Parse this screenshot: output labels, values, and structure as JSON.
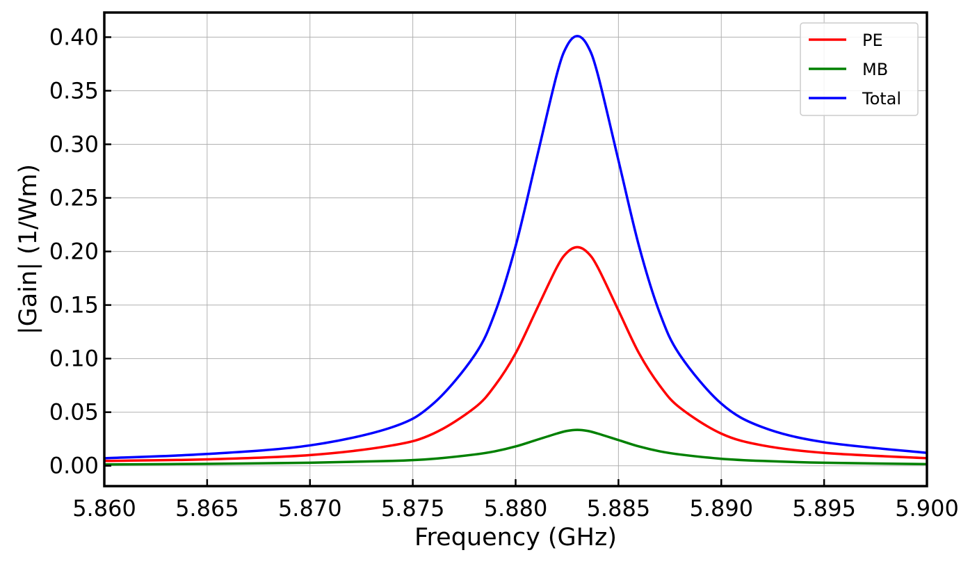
{
  "chart_data": {
    "type": "line",
    "title": "",
    "xlabel": "Frequency (GHz)",
    "ylabel": "|Gain| (1/Wm)",
    "xlim": [
      5.86,
      5.9
    ],
    "ylim": [
      -0.019,
      0.423
    ],
    "x_ticks": [
      "5.860",
      "5.865",
      "5.870",
      "5.875",
      "5.880",
      "5.885",
      "5.890",
      "5.895",
      "5.900"
    ],
    "y_ticks": [
      "0.00",
      "0.05",
      "0.10",
      "0.15",
      "0.20",
      "0.25",
      "0.30",
      "0.35",
      "0.40"
    ],
    "grid": true,
    "legend_position": "top-right",
    "series": [
      {
        "name": "PE",
        "color": "#ff0000",
        "x": [
          5.86,
          5.865,
          5.87,
          5.874,
          5.876,
          5.878,
          5.879,
          5.88,
          5.881,
          5.882,
          5.8825,
          5.883,
          5.8835,
          5.884,
          5.885,
          5.886,
          5.887,
          5.888,
          5.89,
          5.892,
          5.895,
          5.9
        ],
        "y": [
          0.0045,
          0.006,
          0.01,
          0.019,
          0.03,
          0.054,
          0.075,
          0.105,
          0.145,
          0.185,
          0.199,
          0.204,
          0.199,
          0.185,
          0.145,
          0.105,
          0.075,
          0.054,
          0.03,
          0.019,
          0.012,
          0.007
        ]
      },
      {
        "name": "MB",
        "color": "#008000",
        "x": [
          5.86,
          5.865,
          5.87,
          5.874,
          5.876,
          5.878,
          5.879,
          5.88,
          5.881,
          5.882,
          5.8825,
          5.883,
          5.8835,
          5.884,
          5.885,
          5.886,
          5.887,
          5.888,
          5.89,
          5.892,
          5.895,
          5.9
        ],
        "y": [
          0.0012,
          0.0018,
          0.0028,
          0.0045,
          0.0065,
          0.0105,
          0.0135,
          0.018,
          0.024,
          0.03,
          0.0325,
          0.0335,
          0.0325,
          0.03,
          0.024,
          0.018,
          0.0135,
          0.0105,
          0.0065,
          0.0045,
          0.0028,
          0.0015
        ]
      },
      {
        "name": "Total",
        "color": "#0000ff",
        "x": [
          5.86,
          5.865,
          5.87,
          5.874,
          5.876,
          5.878,
          5.879,
          5.88,
          5.881,
          5.882,
          5.8825,
          5.883,
          5.8835,
          5.884,
          5.885,
          5.886,
          5.887,
          5.888,
          5.89,
          5.892,
          5.895,
          5.9
        ],
        "y": [
          0.007,
          0.011,
          0.019,
          0.036,
          0.058,
          0.103,
          0.143,
          0.205,
          0.285,
          0.365,
          0.392,
          0.401,
          0.392,
          0.365,
          0.285,
          0.205,
          0.143,
          0.103,
          0.058,
          0.036,
          0.022,
          0.012
        ]
      }
    ]
  }
}
